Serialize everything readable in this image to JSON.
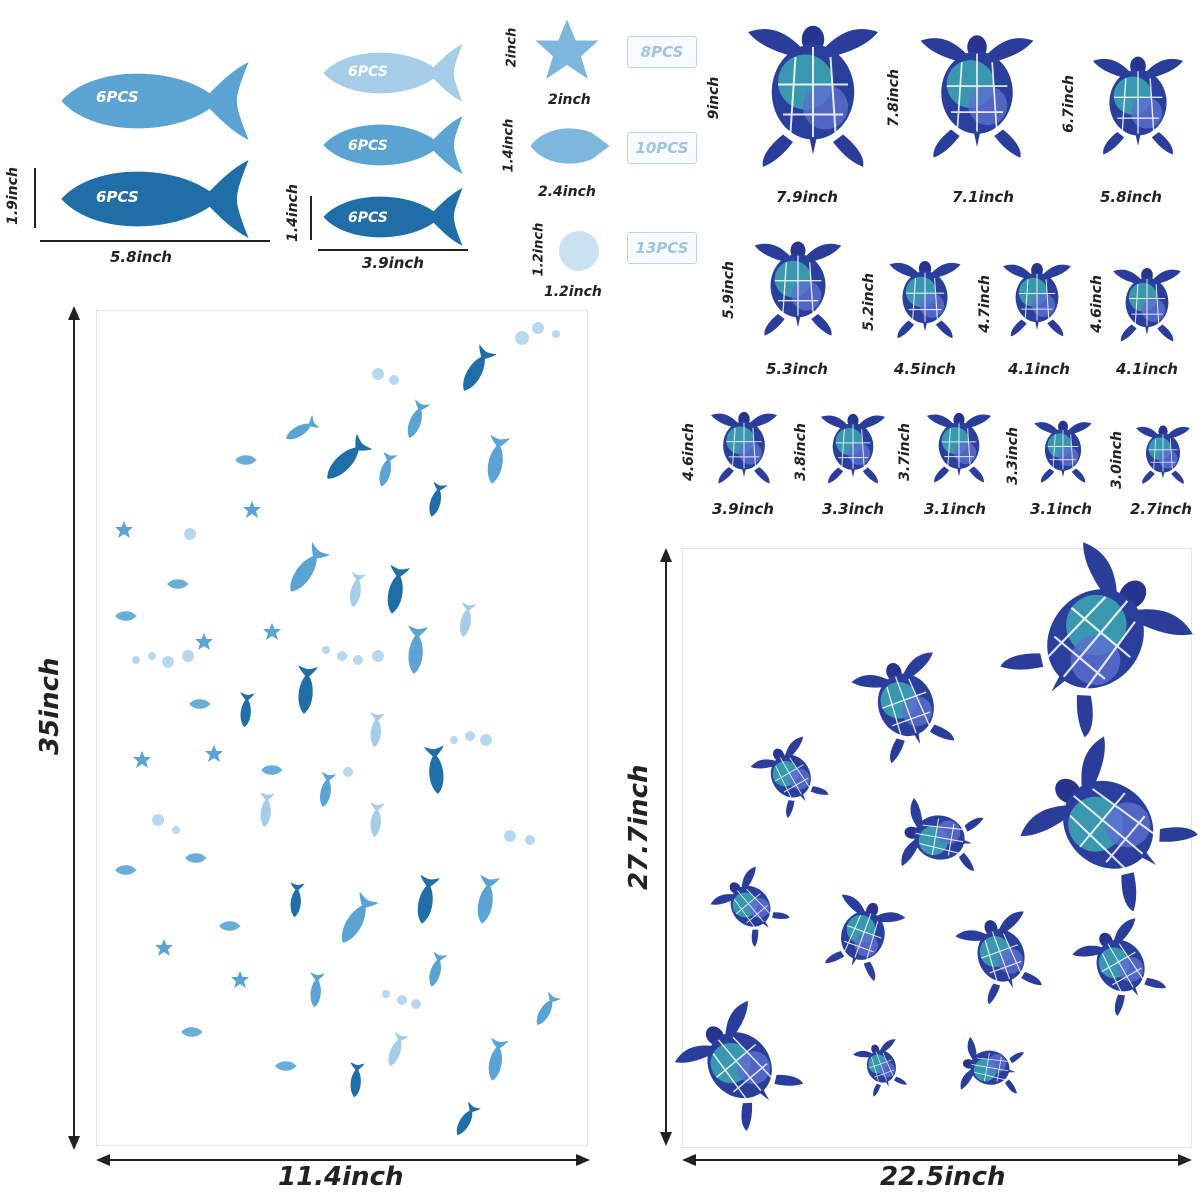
{
  "fish_sizes": {
    "width_large": "5.8inch",
    "height_large": "1.9inch",
    "width_small": "3.9inch",
    "height_small": "1.4inch",
    "large_pcs": [
      "6PCS",
      "6PCS"
    ],
    "small_pcs": [
      "6PCS",
      "6PCS",
      "6PCS"
    ]
  },
  "small_items": {
    "starfish": {
      "height": "2inch",
      "width": "2inch",
      "pcs": "8PCS"
    },
    "shell": {
      "height": "1.4inch",
      "width": "2.4inch",
      "pcs": "10PCS"
    },
    "bubble": {
      "height": "1.2inch",
      "width": "1.2inch",
      "pcs": "13PCS"
    }
  },
  "turtles": [
    {
      "height": "9inch",
      "width": "7.9inch"
    },
    {
      "height": "7.8inch",
      "width": "7.1inch"
    },
    {
      "height": "6.7inch",
      "width": "5.8inch"
    },
    {
      "height": "5.9inch",
      "width": "5.3inch"
    },
    {
      "height": "5.2inch",
      "width": "4.5inch"
    },
    {
      "height": "4.7inch",
      "width": "4.1inch"
    },
    {
      "height": "4.6inch",
      "width": "4.1inch"
    },
    {
      "height": "4.6inch",
      "width": "3.9inch"
    },
    {
      "height": "3.8inch",
      "width": "3.3inch"
    },
    {
      "height": "3.7inch",
      "width": "3.1inch"
    },
    {
      "height": "3.3inch",
      "width": "3.1inch"
    },
    {
      "height": "3.0inch",
      "width": "2.7inch"
    }
  ],
  "fish_panel": {
    "height": "35inch",
    "width": "11.4inch"
  },
  "turtle_panel": {
    "height": "27.7inch",
    "width": "22.5inch"
  },
  "colors": {
    "dark_blue": "#1f6ea8",
    "mid_blue": "#5aa3d3",
    "light_blue": "#a6cde8",
    "turtle_navy": "#2b3d9a",
    "turtle_teal": "#3fb5b5"
  }
}
